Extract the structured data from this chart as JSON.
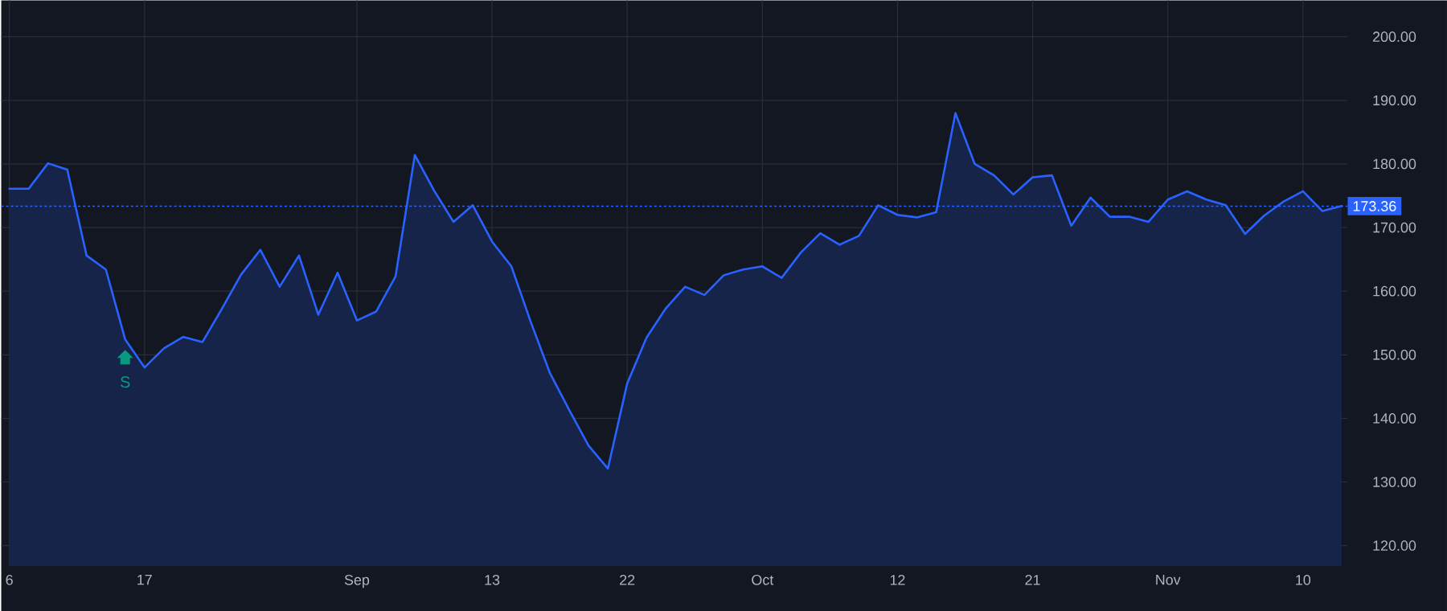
{
  "chart_data": {
    "type": "area",
    "categories": [
      "6",
      null,
      null,
      null,
      null,
      null,
      null,
      "17",
      null,
      null,
      null,
      null,
      null,
      null,
      null,
      null,
      null,
      null,
      "Sep",
      null,
      null,
      null,
      null,
      null,
      null,
      "13",
      null,
      null,
      null,
      null,
      null,
      null,
      "22",
      null,
      null,
      null,
      null,
      null,
      null,
      "Oct",
      null,
      null,
      null,
      null,
      null,
      null,
      "12",
      null,
      null,
      null,
      null,
      null,
      null,
      "21",
      null,
      null,
      null,
      null,
      null,
      null,
      "Nov",
      null,
      null,
      null,
      null,
      null,
      null,
      "10",
      null,
      null
    ],
    "series": [
      {
        "color": "#2962ff",
        "values": [
          176.1,
          176.1,
          180.1,
          179.1,
          165.6,
          163.4,
          152.4,
          148.0,
          151.0,
          152.8,
          152.0,
          157.2,
          162.6,
          166.5,
          160.7,
          165.6,
          156.3,
          162.9,
          155.4,
          156.8,
          162.3,
          181.4,
          175.8,
          170.9,
          173.5,
          167.8,
          163.9,
          155.2,
          147.1,
          141.3,
          135.7,
          132.1,
          145.5,
          152.7,
          157.3,
          160.7,
          159.4,
          162.5,
          163.4,
          163.9,
          162.1,
          166.1,
          169.1,
          167.3,
          168.7,
          173.5,
          172.0,
          171.6,
          172.4,
          188.0,
          180.0,
          178.2,
          175.2,
          177.9,
          178.2,
          170.3,
          174.7,
          171.7,
          171.7,
          170.9,
          174.4,
          175.7,
          174.4,
          173.5,
          169.0,
          171.9,
          174.1,
          175.7,
          172.6,
          173.4
        ]
      }
    ],
    "ylim": [
      116.8,
      205.7
    ],
    "yticks": [
      {
        "value": 120,
        "label": "120.00"
      },
      {
        "value": 130,
        "label": "130.00"
      },
      {
        "value": 140,
        "label": "140.00"
      },
      {
        "value": 150,
        "label": "150.00"
      },
      {
        "value": 160,
        "label": "160.00"
      },
      {
        "value": 170,
        "label": "170.00"
      },
      {
        "value": 180,
        "label": "180.00"
      },
      {
        "value": 190,
        "label": "190.00"
      },
      {
        "value": 200,
        "label": "200.00"
      }
    ],
    "grid": true,
    "ref_lines": [
      {
        "axis": "y",
        "value": 173.36,
        "label": "173.36",
        "color": "#2962ff",
        "line_style": "dotted"
      }
    ],
    "annotations": [
      "S"
    ]
  }
}
